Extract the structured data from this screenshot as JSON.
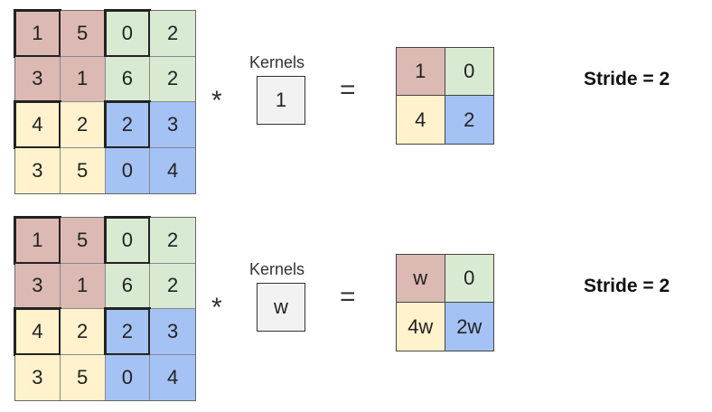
{
  "colors": {
    "red": "#dcb9b3",
    "green": "#d9ead3",
    "yellow": "#fff2cc",
    "blue": "#a4c2f4",
    "kernel_fill": "#f2f2f2"
  },
  "panels": [
    {
      "input": [
        [
          "1",
          "5",
          "0",
          "2"
        ],
        [
          "3",
          "1",
          "6",
          "2"
        ],
        [
          "4",
          "2",
          "2",
          "3"
        ],
        [
          "3",
          "5",
          "0",
          "4"
        ]
      ],
      "operator": "*",
      "kernel_label": "Kernels",
      "kernel_value": "1",
      "equals": "=",
      "output": [
        [
          "1",
          "0"
        ],
        [
          "4",
          "2"
        ]
      ],
      "stride": "Stride = 2"
    },
    {
      "input": [
        [
          "1",
          "5",
          "0",
          "2"
        ],
        [
          "3",
          "1",
          "6",
          "2"
        ],
        [
          "4",
          "2",
          "2",
          "3"
        ],
        [
          "3",
          "5",
          "0",
          "4"
        ]
      ],
      "operator": "*",
      "kernel_label": "Kernels",
      "kernel_value": "w",
      "equals": "=",
      "output": [
        [
          "w",
          "0"
        ],
        [
          "4w",
          "2w"
        ]
      ],
      "stride": "Stride = 2"
    }
  ]
}
